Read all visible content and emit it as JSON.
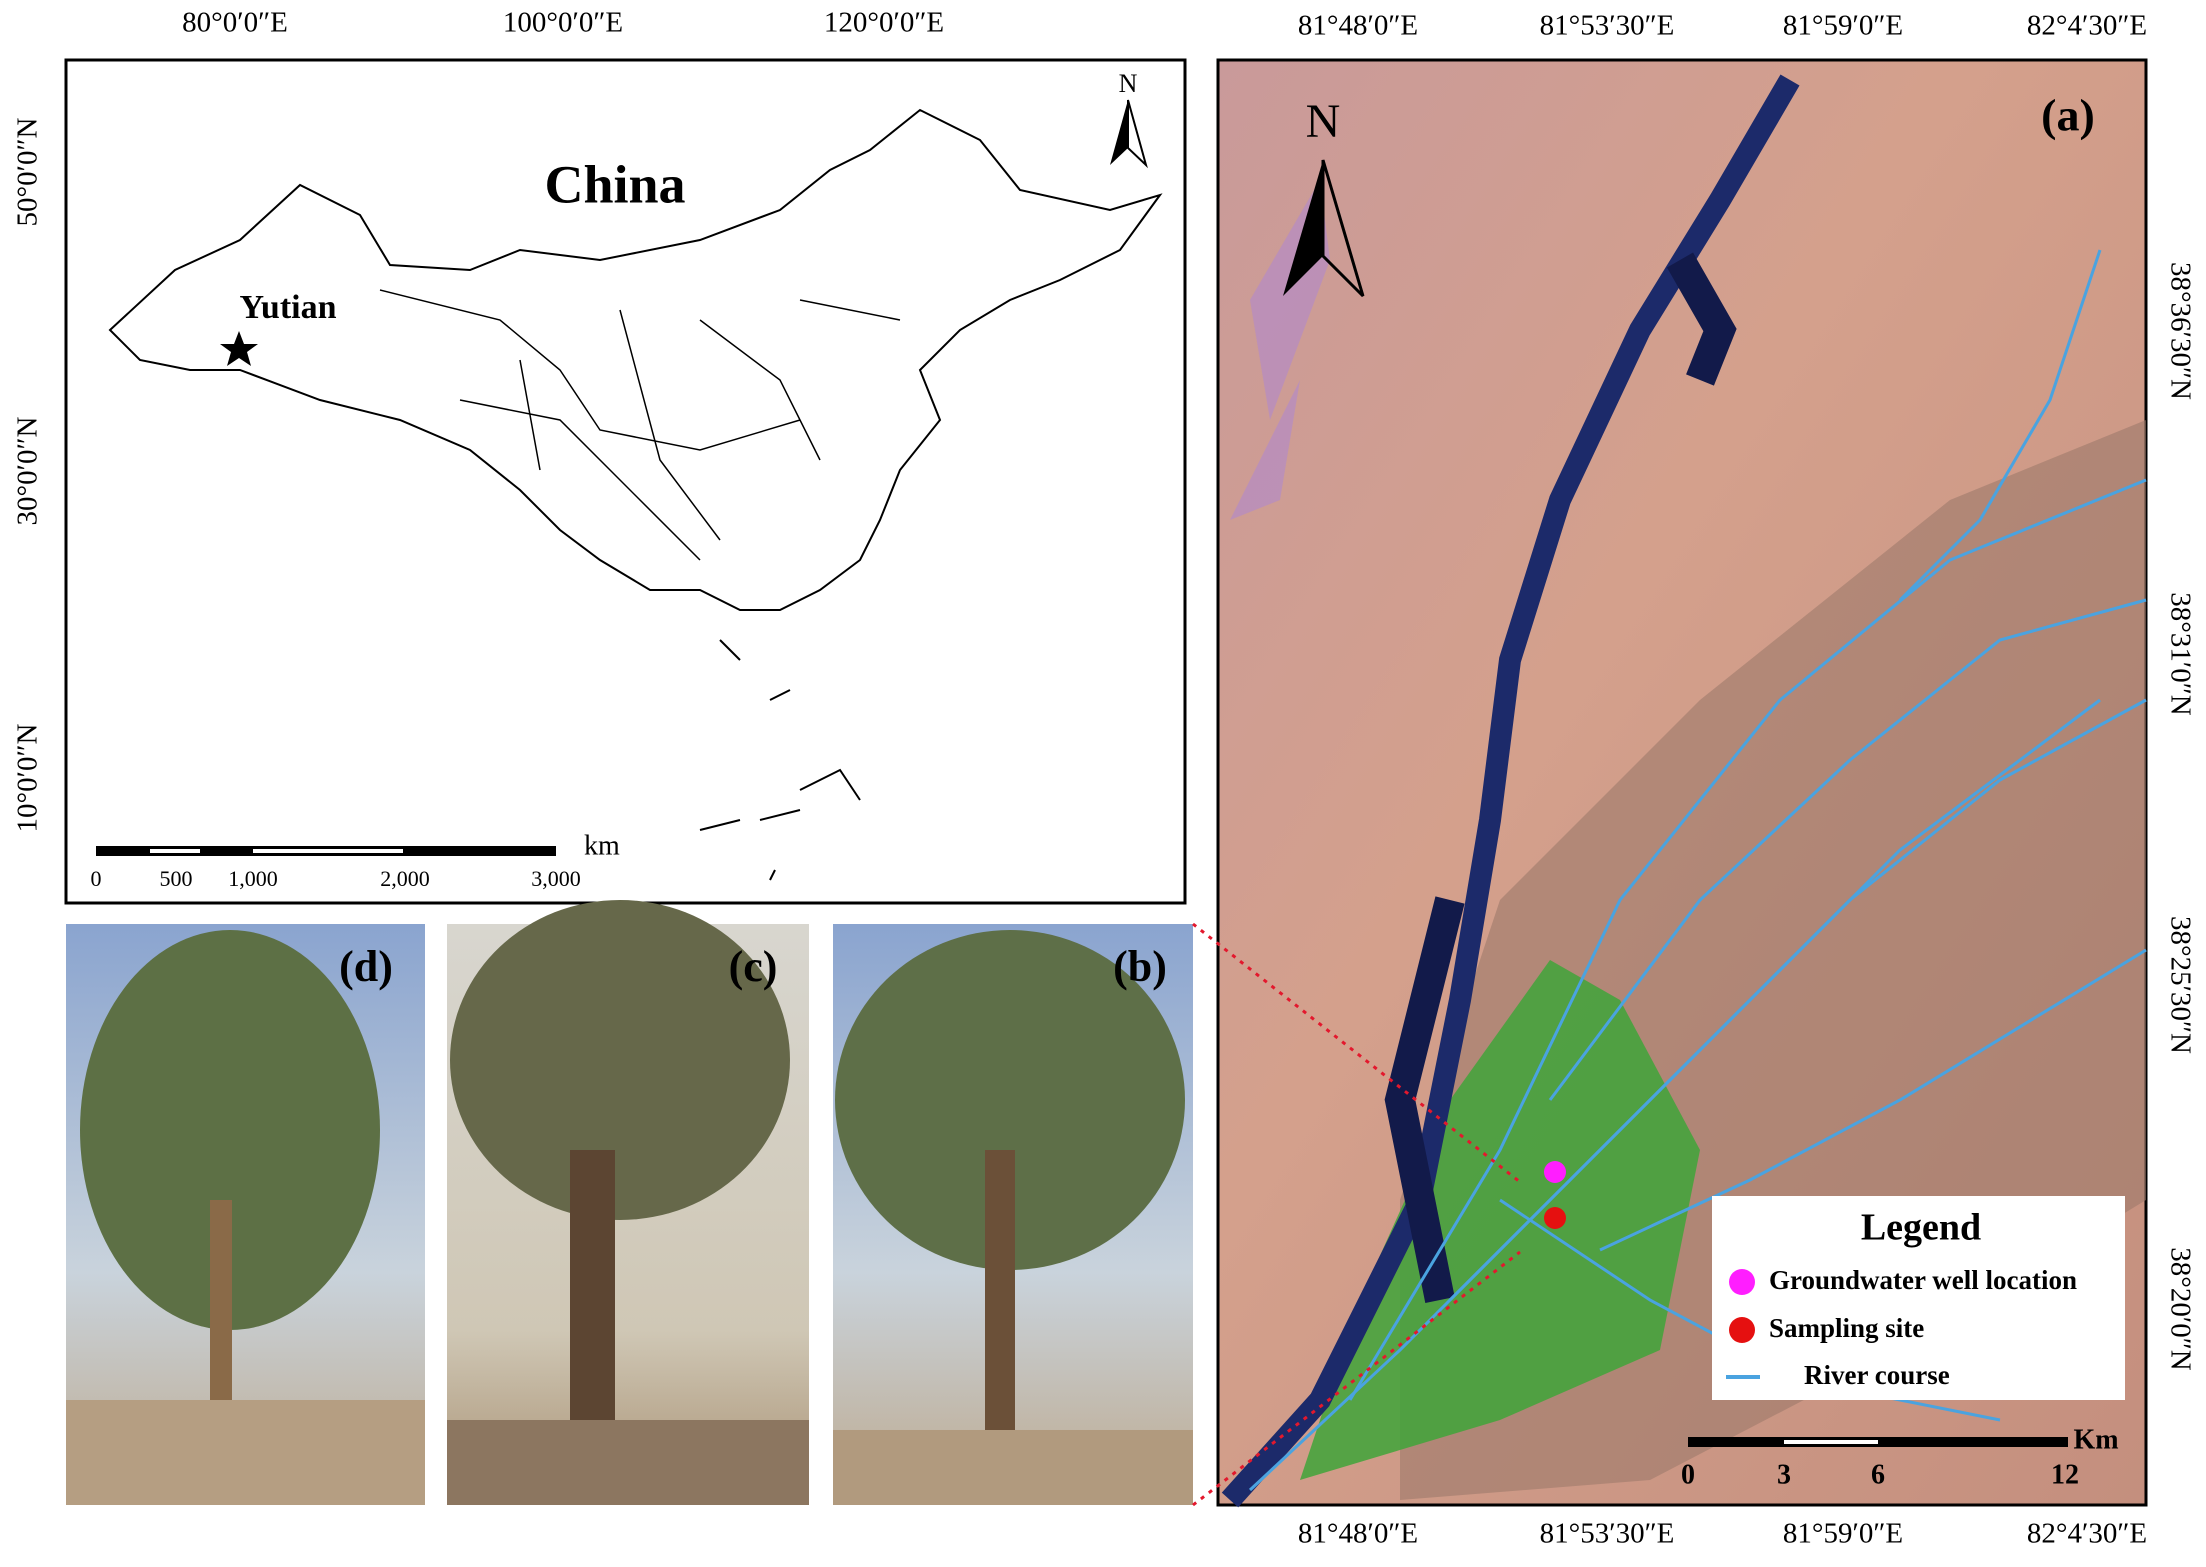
{
  "china_map": {
    "title": "China",
    "place": "Yutian",
    "north": "N",
    "top_labels": [
      "80°0′0″E",
      "100°0′0″E",
      "120°0′0″E"
    ],
    "left_labels": [
      "50°0′0″N",
      "30°0′0″N",
      "10°0′0″N"
    ],
    "scale_labels": [
      "0",
      "500",
      "1,000",
      "2,000",
      "3,000"
    ],
    "scale_unit": "km"
  },
  "satellite_map": {
    "panel_label": "(a)",
    "north": "N",
    "top_labels": [
      "81°48′0″E",
      "81°53′30″E",
      "81°59′0″E",
      "82°4′30″E"
    ],
    "bottom_labels": [
      "81°48′0″E",
      "81°53′30″E",
      "81°59′0″E",
      "82°4′30″E"
    ],
    "right_labels": [
      "38°36′30″N",
      "38°31′0″N",
      "38°25′30″N",
      "38°20′0″N"
    ],
    "legend": {
      "title": "Legend",
      "items": [
        "Groundwater well location",
        "Sampling site",
        "River course"
      ]
    },
    "scale_labels": [
      "0",
      "3",
      "6",
      "12"
    ],
    "scale_unit": "Km"
  },
  "photos": [
    {
      "label": "(d)"
    },
    {
      "label": "(c)"
    },
    {
      "label": "(b)"
    }
  ]
}
